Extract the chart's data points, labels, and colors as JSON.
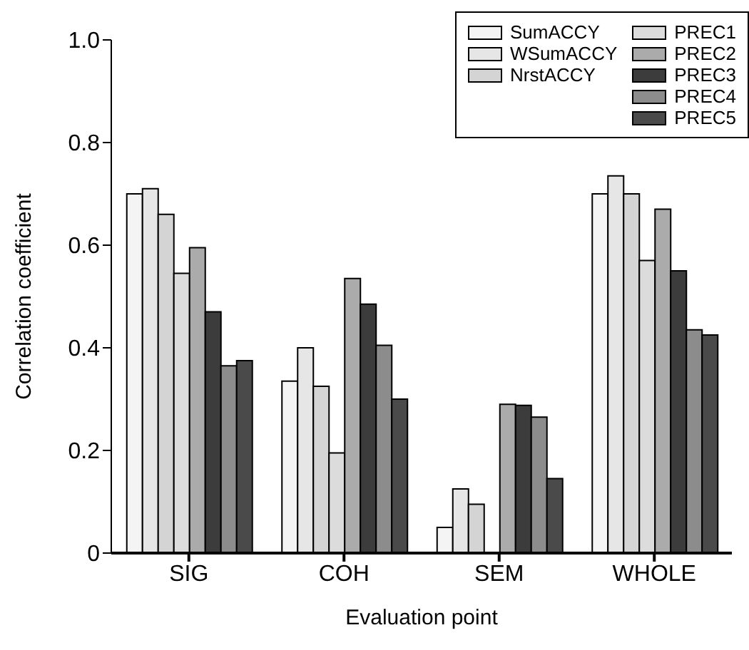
{
  "chart_data": {
    "type": "bar",
    "xlabel": "Evaluation point",
    "ylabel": "Correlation coefficient",
    "categories": [
      "SIG",
      "COH",
      "SEM",
      "WHOLE"
    ],
    "series": [
      {
        "name": "SumACCY",
        "color": "#f4f4f4",
        "values": [
          0.7,
          0.335,
          0.05,
          0.7
        ]
      },
      {
        "name": "WSumACCY",
        "color": "#e6e6e6",
        "values": [
          0.71,
          0.4,
          0.125,
          0.735
        ]
      },
      {
        "name": "NrstACCY",
        "color": "#d4d4d4",
        "values": [
          0.66,
          0.325,
          0.095,
          0.7
        ]
      },
      {
        "name": "PREC1",
        "color": "#dcdcdc",
        "values": [
          0.545,
          0.195,
          null,
          0.57
        ]
      },
      {
        "name": "PREC2",
        "color": "#ababab",
        "values": [
          0.595,
          0.535,
          0.29,
          0.67
        ]
      },
      {
        "name": "PREC3",
        "color": "#3c3c3c",
        "values": [
          0.47,
          0.485,
          0.288,
          0.55
        ]
      },
      {
        "name": "PREC4",
        "color": "#8c8c8c",
        "values": [
          0.365,
          0.405,
          0.265,
          0.435
        ]
      },
      {
        "name": "PREC5",
        "color": "#4a4a4a",
        "values": [
          0.375,
          0.3,
          0.145,
          0.425
        ]
      }
    ],
    "ylim": [
      0,
      1.0
    ],
    "yticks": [
      0,
      0.2,
      0.4,
      0.6,
      0.8,
      {
        "value": 1.0,
        "label": "1.0"
      }
    ],
    "legend": "top right",
    "grid": false
  }
}
